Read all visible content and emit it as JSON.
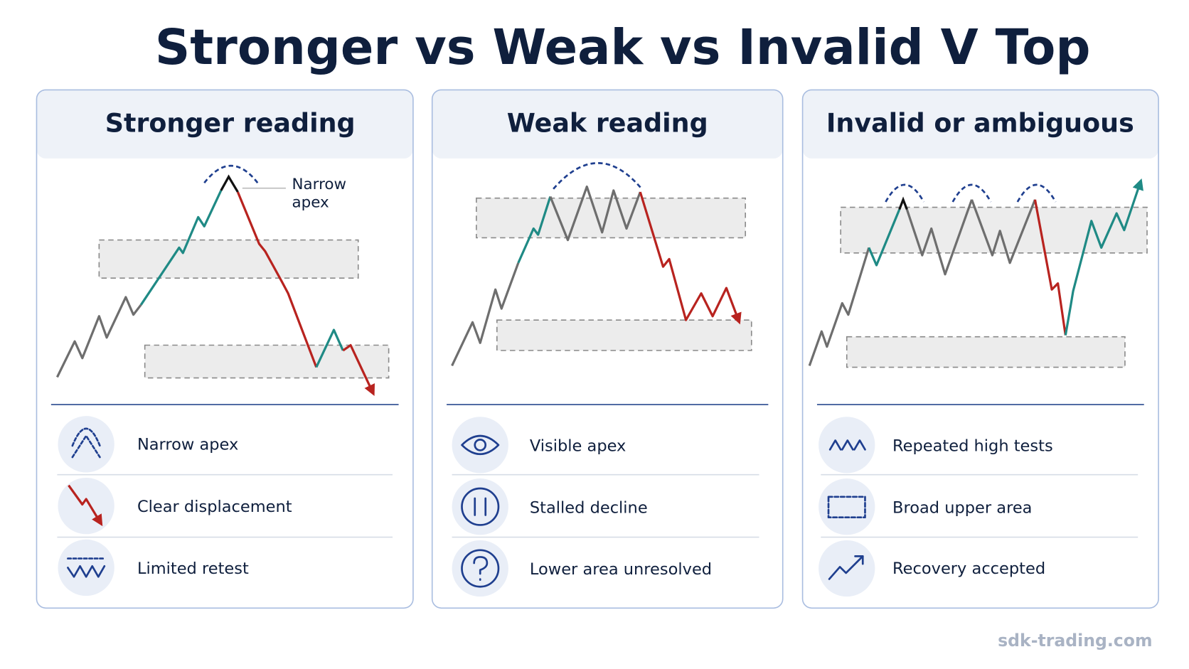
{
  "title": "Stronger vs Weak vs Invalid V Top",
  "panels": [
    {
      "heading": "Stronger reading",
      "annotation_lines": [
        "Narrow",
        "apex"
      ],
      "items": [
        "Narrow apex",
        "Clear displacement",
        "Limited retest"
      ]
    },
    {
      "heading": "Weak reading",
      "items": [
        "Visible apex",
        "Stalled decline",
        "Lower area unresolved"
      ]
    },
    {
      "heading": "Invalid or ambiguous",
      "items": [
        "Repeated high tests",
        "Broad upper area",
        "Recovery accepted"
      ]
    }
  ],
  "footer": "sdk-trading.com"
}
